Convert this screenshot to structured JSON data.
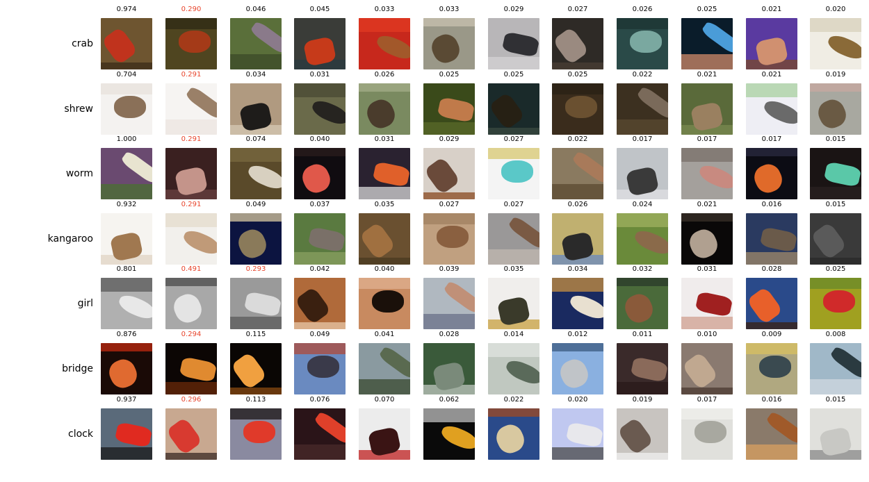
{
  "figure": {
    "rows": [
      {
        "label": "crab",
        "items": [
          {
            "score": "0.974",
            "highlight": false,
            "content": "red crab on ground",
            "bg": "#6e5530",
            "main": "#c0331d",
            "accent": "#3c2c18"
          },
          {
            "score": "0.290",
            "highlight": true,
            "content": "crab among leaves",
            "bg": "#4f4520",
            "main": "#a43a18",
            "accent": "#2d2a14"
          },
          {
            "score": "0.046",
            "highlight": false,
            "content": "crab on moss",
            "bg": "#5a6f3a",
            "main": "#8a7a8a",
            "accent": "#3c4a28"
          },
          {
            "score": "0.045",
            "highlight": false,
            "content": "orange crab dark",
            "bg": "#3a3c38",
            "main": "#c63a1a",
            "accent": "#2a3a40"
          },
          {
            "score": "0.033",
            "highlight": false,
            "content": "crab held in hands",
            "bg": "#c7281c",
            "main": "#a2582a",
            "accent": "#e23a22"
          },
          {
            "score": "0.033",
            "highlight": false,
            "content": "crab on rocks",
            "bg": "#9a9888",
            "main": "#5a4a34",
            "accent": "#c8c2b0"
          },
          {
            "score": "0.029",
            "highlight": false,
            "content": "spider-like crab",
            "bg": "#b8b6b8",
            "main": "#303034",
            "accent": "#d4d2d4"
          },
          {
            "score": "0.027",
            "highlight": false,
            "content": "crab on dark",
            "bg": "#2e2a26",
            "main": "#9a8a80",
            "accent": "#4a3e34"
          },
          {
            "score": "0.026",
            "highlight": false,
            "content": "crab on teal",
            "bg": "#2a4a48",
            "main": "#7aa8a0",
            "accent": "#1c3432"
          },
          {
            "score": "0.025",
            "highlight": false,
            "content": "crab blue bowl",
            "bg": "#0a1c2a",
            "main": "#4a9cd8",
            "accent": "#d08a6a"
          },
          {
            "score": "0.021",
            "highlight": false,
            "content": "crab in hand",
            "bg": "#5a3aa0",
            "main": "#d09070",
            "accent": "#7a4a2a"
          },
          {
            "score": "0.020",
            "highlight": false,
            "content": "crab on white",
            "bg": "#f0ede4",
            "main": "#8a6a38",
            "accent": "#d8d0bc"
          }
        ]
      },
      {
        "label": "shrew",
        "items": [
          {
            "score": "0.704",
            "highlight": false,
            "content": "shrew on white",
            "bg": "#f4f2f0",
            "main": "#8a7058",
            "accent": "#e8e2dc"
          },
          {
            "score": "0.291",
            "highlight": true,
            "content": "shrew on white",
            "bg": "#f6f4f2",
            "main": "#9a8068",
            "accent": "#ecE6e0"
          },
          {
            "score": "0.034",
            "highlight": false,
            "content": "black shrew",
            "bg": "#b09a80",
            "main": "#1e1c1a",
            "accent": "#d6c8b4"
          },
          {
            "score": "0.031",
            "highlight": false,
            "content": "mole in grass",
            "bg": "#6a6a4a",
            "main": "#262420",
            "accent": "#4a4a34"
          },
          {
            "score": "0.026",
            "highlight": false,
            "content": "animal in woods",
            "bg": "#7a8a60",
            "main": "#4a3c2c",
            "accent": "#a4ac88"
          },
          {
            "score": "0.025",
            "highlight": false,
            "content": "small mammal",
            "bg": "#3a4a1a",
            "main": "#c07a4a",
            "accent": "#5a6a2a"
          },
          {
            "score": "0.025",
            "highlight": false,
            "content": "dark animal",
            "bg": "#1a2a2a",
            "main": "#262014",
            "accent": "#3a4a40"
          },
          {
            "score": "0.025",
            "highlight": false,
            "content": "forest floor",
            "bg": "#3a2c1c",
            "main": "#6a5030",
            "accent": "#2a2014"
          },
          {
            "score": "0.022",
            "highlight": false,
            "content": "shrew on litter",
            "bg": "#3c3020",
            "main": "#7a6a5a",
            "accent": "#5a4a30"
          },
          {
            "score": "0.021",
            "highlight": false,
            "content": "hedgehog grass",
            "bg": "#5a6a3a",
            "main": "#9a8060",
            "accent": "#7a8a50"
          },
          {
            "score": "0.021",
            "highlight": false,
            "content": "shrew drawing",
            "bg": "#eeeef4",
            "main": "#6a6a6a",
            "accent": "#a8d0a0"
          },
          {
            "score": "0.019",
            "highlight": false,
            "content": "rodent on rock",
            "bg": "#a8a8a0",
            "main": "#6a5a44",
            "accent": "#c8a8a0"
          }
        ]
      },
      {
        "label": "worm",
        "items": [
          {
            "score": "1.000",
            "highlight": false,
            "content": "white worm purple",
            "bg": "#6a4a70",
            "main": "#e8e4d0",
            "accent": "#4a7030"
          },
          {
            "score": "0.291",
            "highlight": true,
            "content": "pink worm dark",
            "bg": "#3a2020",
            "main": "#c4948a",
            "accent": "#6a4040"
          },
          {
            "score": "0.074",
            "highlight": false,
            "content": "pale worm soil",
            "bg": "#5a4a2a",
            "main": "#d8d0c0",
            "accent": "#7a6a40"
          },
          {
            "score": "0.040",
            "highlight": false,
            "content": "red worm black",
            "bg": "#100c10",
            "main": "#e0584a",
            "accent": "#2a1c1c"
          },
          {
            "score": "0.031",
            "highlight": false,
            "content": "orange worm dark",
            "bg": "#2a2230",
            "main": "#e0602a",
            "accent": "#d8d8d8"
          },
          {
            "score": "0.029",
            "highlight": false,
            "content": "thin worm paper",
            "bg": "#d8d0c8",
            "main": "#6a4a3a",
            "accent": "#8a4a20"
          },
          {
            "score": "0.027",
            "highlight": false,
            "content": "worm teal",
            "bg": "#f4f4f4",
            "main": "#5ac8c8",
            "accent": "#d8c870"
          },
          {
            "score": "0.022",
            "highlight": false,
            "content": "worm gravel",
            "bg": "#8a7a60",
            "main": "#a87a5a",
            "accent": "#5a4a30"
          },
          {
            "score": "0.017",
            "highlight": false,
            "content": "worm on stone",
            "bg": "#c0c4c8",
            "main": "#3a3a3a",
            "accent": "#e0e0e4"
          },
          {
            "score": "0.017",
            "highlight": false,
            "content": "worm by hand",
            "bg": "#a4a09c",
            "main": "#c88a80",
            "accent": "#7a706a"
          },
          {
            "score": "0.017",
            "highlight": false,
            "content": "orange worm black",
            "bg": "#0c0c14",
            "main": "#e06a2a",
            "accent": "#2a2a40"
          },
          {
            "score": "0.015",
            "highlight": false,
            "content": "green worm",
            "bg": "#1a1414",
            "main": "#5ac8a8",
            "accent": "#2a2020"
          }
        ]
      },
      {
        "label": "kangaroo",
        "items": [
          {
            "score": "0.932",
            "highlight": false,
            "content": "kangaroo white",
            "bg": "#f6f4f0",
            "main": "#a07850",
            "accent": "#e0d4c4"
          },
          {
            "score": "0.291",
            "highlight": true,
            "content": "kangaroo white",
            "bg": "#f2f0ec",
            "main": "#c09a78",
            "accent": "#e4dccc"
          },
          {
            "score": "0.049",
            "highlight": false,
            "content": "kangaroo navy",
            "bg": "#0c1440",
            "main": "#8a7a5a",
            "accent": "#d8c8a0"
          },
          {
            "score": "0.037",
            "highlight": false,
            "content": "kangaroo grass",
            "bg": "#5a7a40",
            "main": "#7a7068",
            "accent": "#8aa060"
          },
          {
            "score": "0.035",
            "highlight": false,
            "content": "kangaroo brown",
            "bg": "#6a5030",
            "main": "#a07040",
            "accent": "#4a3a20"
          },
          {
            "score": "0.027",
            "highlight": false,
            "content": "kangaroo close",
            "bg": "#c0a080",
            "main": "#8a6040",
            "accent": "#a08060"
          },
          {
            "score": "0.027",
            "highlight": false,
            "content": "kangaroos",
            "bg": "#9a9898",
            "main": "#7a5a44",
            "accent": "#c0b8b0"
          },
          {
            "score": "0.026",
            "highlight": false,
            "content": "people field",
            "bg": "#c0b070",
            "main": "#2a2a2a",
            "accent": "#6a8ac0"
          },
          {
            "score": "0.024",
            "highlight": false,
            "content": "kangaroo grass",
            "bg": "#6a8a3a",
            "main": "#8a6a4a",
            "accent": "#a0b060"
          },
          {
            "score": "0.021",
            "highlight": false,
            "content": "kangaroo night",
            "bg": "#0a0808",
            "main": "#b0a090",
            "accent": "#3a3028"
          },
          {
            "score": "0.016",
            "highlight": false,
            "content": "kangaroo blue",
            "bg": "#2a3a60",
            "main": "#6a5a4a",
            "accent": "#a08a6a"
          },
          {
            "score": "0.015",
            "highlight": false,
            "content": "kangaroo grey",
            "bg": "#3a3a3a",
            "main": "#5a5a5a",
            "accent": "#2a2a2a"
          }
        ]
      },
      {
        "label": "girl",
        "items": [
          {
            "score": "0.801",
            "highlight": false,
            "content": "grey face",
            "bg": "#b0b0b0",
            "main": "#e8e8e8",
            "accent": "#5a5a5a"
          },
          {
            "score": "0.491",
            "highlight": true,
            "content": "grey face",
            "bg": "#a8a8a8",
            "main": "#e4e4e4",
            "accent": "#4a4a4a"
          },
          {
            "score": "0.293",
            "highlight": true,
            "content": "grey toddler",
            "bg": "#9a9a9a",
            "main": "#dadada",
            "accent": "#5a5a5a"
          },
          {
            "score": "0.042",
            "highlight": false,
            "content": "girl hands up",
            "bg": "#b06a3a",
            "main": "#3a2010",
            "accent": "#e8c8a8"
          },
          {
            "score": "0.040",
            "highlight": false,
            "content": "girl dark hair",
            "bg": "#c88a60",
            "main": "#1a100a",
            "accent": "#e0b090"
          },
          {
            "score": "0.039",
            "highlight": false,
            "content": "girl portrait",
            "bg": "#b0b8c0",
            "main": "#c09078",
            "accent": "#6a7088"
          },
          {
            "score": "0.035",
            "highlight": false,
            "content": "child chef",
            "bg": "#f0eeec",
            "main": "#3a3a2a",
            "accent": "#c8a040"
          },
          {
            "score": "0.034",
            "highlight": false,
            "content": "girl dress",
            "bg": "#1a2a60",
            "main": "#e8e0d0",
            "accent": "#c89040"
          },
          {
            "score": "0.032",
            "highlight": false,
            "content": "smiling child",
            "bg": "#4a6a3a",
            "main": "#8a5a3a",
            "accent": "#2a3a2a"
          },
          {
            "score": "0.031",
            "highlight": false,
            "content": "girl red",
            "bg": "#f0ecec",
            "main": "#a02020",
            "accent": "#d0a090"
          },
          {
            "score": "0.028",
            "highlight": false,
            "content": "girl orange",
            "bg": "#2a4a8a",
            "main": "#e8602a",
            "accent": "#3a2010"
          },
          {
            "score": "0.025",
            "highlight": false,
            "content": "girl grass",
            "bg": "#a0a020",
            "main": "#d02a2a",
            "accent": "#6a8a2a"
          }
        ]
      },
      {
        "label": "bridge",
        "items": [
          {
            "score": "0.876",
            "highlight": false,
            "content": "lit bridge night",
            "bg": "#1a0a06",
            "main": "#e06a30",
            "accent": "#c02a10"
          },
          {
            "score": "0.294",
            "highlight": true,
            "content": "lit bridge night",
            "bg": "#0c0604",
            "main": "#e08a30",
            "accent": "#6a2a08"
          },
          {
            "score": "0.115",
            "highlight": false,
            "content": "lit bridge",
            "bg": "#0a0604",
            "main": "#f0a040",
            "accent": "#8a4a10"
          },
          {
            "score": "0.049",
            "highlight": false,
            "content": "lift bridge",
            "bg": "#6a8ac0",
            "main": "#3a3a4a",
            "accent": "#b04a3a"
          },
          {
            "score": "0.041",
            "highlight": false,
            "content": "truss bridge",
            "bg": "#8a9aa0",
            "main": "#5a6a50",
            "accent": "#3a4a30"
          },
          {
            "score": "0.028",
            "highlight": false,
            "content": "bridge green",
            "bg": "#3a5a3a",
            "main": "#7a8a7a",
            "accent": "#c0c8c0"
          },
          {
            "score": "0.014",
            "highlight": false,
            "content": "concrete bridge",
            "bg": "#c0c8c0",
            "main": "#5a6a5a",
            "accent": "#e0e4e0"
          },
          {
            "score": "0.012",
            "highlight": false,
            "content": "suspension",
            "bg": "#8ab0e0",
            "main": "#c0c4c8",
            "accent": "#3a5a80"
          },
          {
            "score": "0.011",
            "highlight": false,
            "content": "truss",
            "bg": "#3a2a2a",
            "main": "#8a6a5a",
            "accent": "#2a1a1a"
          },
          {
            "score": "0.010",
            "highlight": false,
            "content": "footbridge",
            "bg": "#8a7a70",
            "main": "#c0a890",
            "accent": "#4a3a30"
          },
          {
            "score": "0.009",
            "highlight": false,
            "content": "bridge water",
            "bg": "#b0a880",
            "main": "#3a4a50",
            "accent": "#d8c060"
          },
          {
            "score": "0.008",
            "highlight": false,
            "content": "bridge river",
            "bg": "#a0b8c8",
            "main": "#2a3a40",
            "accent": "#d0d8e0"
          }
        ]
      },
      {
        "label": "clock",
        "items": [
          {
            "score": "0.937",
            "highlight": false,
            "content": "red digital clock",
            "bg": "#5a6a7a",
            "main": "#e02a20",
            "accent": "#1a1a1a"
          },
          {
            "score": "0.296",
            "highlight": true,
            "content": "red digital clock",
            "bg": "#c8a890",
            "main": "#d83a30",
            "accent": "#3a2a24"
          },
          {
            "score": "0.113",
            "highlight": false,
            "content": "digital clock",
            "bg": "#8a8aa0",
            "main": "#e03a2a",
            "accent": "#1a1414"
          },
          {
            "score": "0.076",
            "highlight": false,
            "content": "alarm clock",
            "bg": "#2a1418",
            "main": "#e0402a",
            "accent": "#4a2a2a"
          },
          {
            "score": "0.070",
            "highlight": false,
            "content": "white clock",
            "bg": "#ececec",
            "main": "#3a1414",
            "accent": "#c02020"
          },
          {
            "score": "0.062",
            "highlight": false,
            "content": "stopwatch",
            "bg": "#0a0a0a",
            "main": "#e0a020",
            "accent": "#c0c0c0"
          },
          {
            "score": "0.022",
            "highlight": false,
            "content": "wall clock",
            "bg": "#2a4a8a",
            "main": "#d8c8a0",
            "accent": "#a04a20"
          },
          {
            "score": "0.020",
            "highlight": false,
            "content": "clock radio",
            "bg": "#c0c8f0",
            "main": "#e8e8ec",
            "accent": "#4a4a4a"
          },
          {
            "score": "0.019",
            "highlight": false,
            "content": "round clock",
            "bg": "#c8c4c0",
            "main": "#6a5a50",
            "accent": "#f0f0f0"
          },
          {
            "score": "0.017",
            "highlight": false,
            "content": "alarm clock",
            "bg": "#e0e0dc",
            "main": "#a8a8a0",
            "accent": "#f0f0ec"
          },
          {
            "score": "0.016",
            "highlight": false,
            "content": "brass clock",
            "bg": "#8a7a6a",
            "main": "#a05a2a",
            "accent": "#d8a060"
          },
          {
            "score": "0.015",
            "highlight": false,
            "content": "wall clock",
            "bg": "#e0e0dc",
            "main": "#c8c8c4",
            "accent": "#8a8a8a"
          }
        ]
      }
    ]
  }
}
